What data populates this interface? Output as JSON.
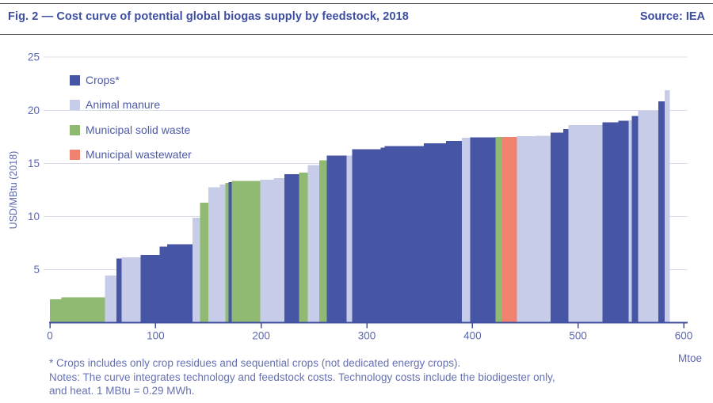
{
  "header": {
    "figure_label": "Fig. 2 — Cost curve of potential global biogas supply by feedstock, 2018",
    "source": "Source: IEA"
  },
  "legend": {
    "items": [
      {
        "label": "Crops*",
        "category": "crops"
      },
      {
        "label": "Animal manure",
        "category": "manure"
      },
      {
        "label": "Municipal solid waste",
        "category": "msw"
      },
      {
        "label": "Municipal wastewater",
        "category": "wastewater"
      }
    ]
  },
  "colors": {
    "crops": "#4655a4",
    "manure": "#c7cde8",
    "msw": "#90ba71",
    "wastewater": "#f0826f",
    "text_header": "#3c4da3",
    "text_axis": "#5d68ae",
    "grid": "#d9dce9",
    "axis_line": "#4150a0",
    "rule": "#54555c"
  },
  "chart_data": {
    "type": "bar",
    "title": "Cost curve of potential global biogas supply by feedstock, 2018",
    "xlabel": "Mtoe",
    "ylabel": "USD/MBtu (2018)",
    "xlim": [
      0,
      600
    ],
    "ylim": [
      0,
      25
    ],
    "x_ticks": [
      0,
      100,
      200,
      300,
      400,
      500,
      600
    ],
    "y_ticks": [
      5,
      10,
      15,
      20,
      25
    ],
    "grid": true,
    "legend_position": "upper-left",
    "segments": [
      {
        "from": 0,
        "to": 11,
        "cost": 2.2,
        "category": "msw"
      },
      {
        "from": 11,
        "to": 52,
        "cost": 2.4,
        "category": "msw"
      },
      {
        "from": 52,
        "to": 63,
        "cost": 4.45,
        "category": "manure"
      },
      {
        "from": 63,
        "to": 68,
        "cost": 6.05,
        "category": "crops"
      },
      {
        "from": 68,
        "to": 86,
        "cost": 6.15,
        "category": "manure"
      },
      {
        "from": 86,
        "to": 104,
        "cost": 6.4,
        "category": "crops"
      },
      {
        "from": 104,
        "to": 111,
        "cost": 7.15,
        "category": "crops"
      },
      {
        "from": 111,
        "to": 135,
        "cost": 7.4,
        "category": "crops"
      },
      {
        "from": 135,
        "to": 142,
        "cost": 9.9,
        "category": "manure"
      },
      {
        "from": 142,
        "to": 150,
        "cost": 11.3,
        "category": "msw"
      },
      {
        "from": 150,
        "to": 161,
        "cost": 12.75,
        "category": "manure"
      },
      {
        "from": 161,
        "to": 166,
        "cost": 13.0,
        "category": "manure"
      },
      {
        "from": 166,
        "to": 169,
        "cost": 13.15,
        "category": "msw"
      },
      {
        "from": 169,
        "to": 172,
        "cost": 13.25,
        "category": "crops"
      },
      {
        "from": 172,
        "to": 199,
        "cost": 13.35,
        "category": "msw"
      },
      {
        "from": 199,
        "to": 212,
        "cost": 13.45,
        "category": "manure"
      },
      {
        "from": 212,
        "to": 222,
        "cost": 13.6,
        "category": "manure"
      },
      {
        "from": 222,
        "to": 236,
        "cost": 14.0,
        "category": "crops"
      },
      {
        "from": 236,
        "to": 244,
        "cost": 14.15,
        "category": "msw"
      },
      {
        "from": 244,
        "to": 255,
        "cost": 14.85,
        "category": "manure"
      },
      {
        "from": 255,
        "to": 262,
        "cost": 15.3,
        "category": "msw"
      },
      {
        "from": 262,
        "to": 281,
        "cost": 15.75,
        "category": "crops"
      },
      {
        "from": 281,
        "to": 286,
        "cost": 15.75,
        "category": "manure"
      },
      {
        "from": 286,
        "to": 313,
        "cost": 16.35,
        "category": "crops"
      },
      {
        "from": 313,
        "to": 317,
        "cost": 16.5,
        "category": "crops"
      },
      {
        "from": 317,
        "to": 354,
        "cost": 16.65,
        "category": "crops"
      },
      {
        "from": 354,
        "to": 375,
        "cost": 16.9,
        "category": "crops"
      },
      {
        "from": 375,
        "to": 390,
        "cost": 17.1,
        "category": "crops"
      },
      {
        "from": 390,
        "to": 398,
        "cost": 17.4,
        "category": "manure"
      },
      {
        "from": 398,
        "to": 422,
        "cost": 17.45,
        "category": "crops"
      },
      {
        "from": 422,
        "to": 428,
        "cost": 17.5,
        "category": "msw"
      },
      {
        "from": 428,
        "to": 442,
        "cost": 17.5,
        "category": "wastewater"
      },
      {
        "from": 442,
        "to": 460,
        "cost": 17.55,
        "category": "manure"
      },
      {
        "from": 460,
        "to": 474,
        "cost": 17.6,
        "category": "manure"
      },
      {
        "from": 474,
        "to": 486,
        "cost": 17.9,
        "category": "crops"
      },
      {
        "from": 486,
        "to": 491,
        "cost": 18.25,
        "category": "crops"
      },
      {
        "from": 491,
        "to": 523,
        "cost": 18.6,
        "category": "manure"
      },
      {
        "from": 523,
        "to": 538,
        "cost": 18.85,
        "category": "crops"
      },
      {
        "from": 538,
        "to": 548,
        "cost": 19.0,
        "category": "crops"
      },
      {
        "from": 548,
        "to": 551,
        "cost": 19.05,
        "category": "manure"
      },
      {
        "from": 551,
        "to": 557,
        "cost": 19.45,
        "category": "crops"
      },
      {
        "from": 557,
        "to": 576,
        "cost": 20.0,
        "category": "manure"
      },
      {
        "from": 576,
        "to": 582,
        "cost": 20.85,
        "category": "crops"
      },
      {
        "from": 582,
        "to": 587,
        "cost": 21.9,
        "category": "manure"
      }
    ]
  },
  "footnotes": [
    "* Crops includes only crop residues and sequential crops (not dedicated energy crops).",
    "Notes: The curve integrates technology and feedstock costs. Technology costs include the biodigester only,",
    "and heat. 1 MBtu = 0.29 MWh."
  ]
}
